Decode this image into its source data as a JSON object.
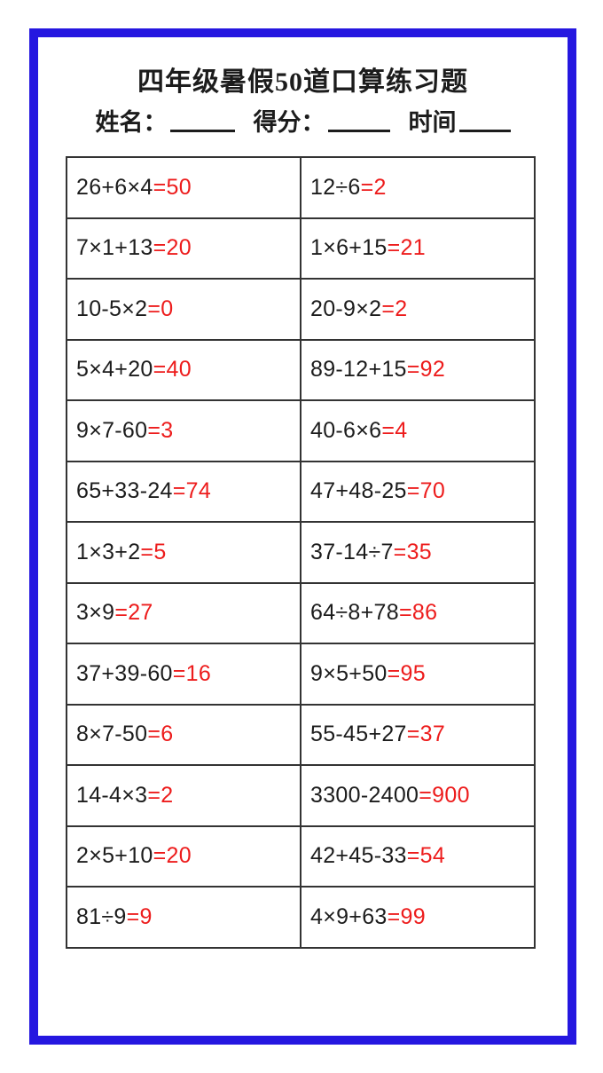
{
  "header": {
    "title": "四年级暑假50道口算练习题",
    "name_label": "姓名：",
    "score_label": "得分：",
    "time_label": "时间"
  },
  "colors": {
    "frame-blue": "#2517e0",
    "answer-red": "#ed1c1c",
    "text-black": "#1c1c1c",
    "grid-line": "#333333"
  },
  "problems": {
    "equals_sign": "=",
    "rows": [
      {
        "left": {
          "expr": "26+6×4",
          "ans": "50"
        },
        "right": {
          "expr": "12÷6",
          "ans": "2"
        }
      },
      {
        "left": {
          "expr": "7×1+13",
          "ans": "20"
        },
        "right": {
          "expr": "1×6+15",
          "ans": "21"
        }
      },
      {
        "left": {
          "expr": "10-5×2",
          "ans": "0"
        },
        "right": {
          "expr": "20-9×2",
          "ans": "2"
        }
      },
      {
        "left": {
          "expr": "5×4+20",
          "ans": "40"
        },
        "right": {
          "expr": "89-12+15",
          "ans": "92"
        }
      },
      {
        "left": {
          "expr": "9×7-60",
          "ans": "3"
        },
        "right": {
          "expr": "40-6×6",
          "ans": "4"
        }
      },
      {
        "left": {
          "expr": "65+33-24",
          "ans": "74"
        },
        "right": {
          "expr": "47+48-25",
          "ans": "70"
        }
      },
      {
        "left": {
          "expr": "1×3+2",
          "ans": "5"
        },
        "right": {
          "expr": "37-14÷7",
          "ans": "35"
        }
      },
      {
        "left": {
          "expr": "3×9",
          "ans": "27"
        },
        "right": {
          "expr": "64÷8+78",
          "ans": "86"
        }
      },
      {
        "left": {
          "expr": "37+39-60",
          "ans": "16"
        },
        "right": {
          "expr": "9×5+50",
          "ans": "95"
        }
      },
      {
        "left": {
          "expr": "8×7-50",
          "ans": "6"
        },
        "right": {
          "expr": "55-45+27",
          "ans": "37"
        }
      },
      {
        "left": {
          "expr": "14-4×3",
          "ans": "2"
        },
        "right": {
          "expr": "3300-2400",
          "ans": "900"
        }
      },
      {
        "left": {
          "expr": "2×5+10",
          "ans": "20"
        },
        "right": {
          "expr": "42+45-33",
          "ans": "54"
        }
      },
      {
        "left": {
          "expr": "81÷9",
          "ans": "9"
        },
        "right": {
          "expr": "4×9+63",
          "ans": "99"
        }
      }
    ]
  }
}
